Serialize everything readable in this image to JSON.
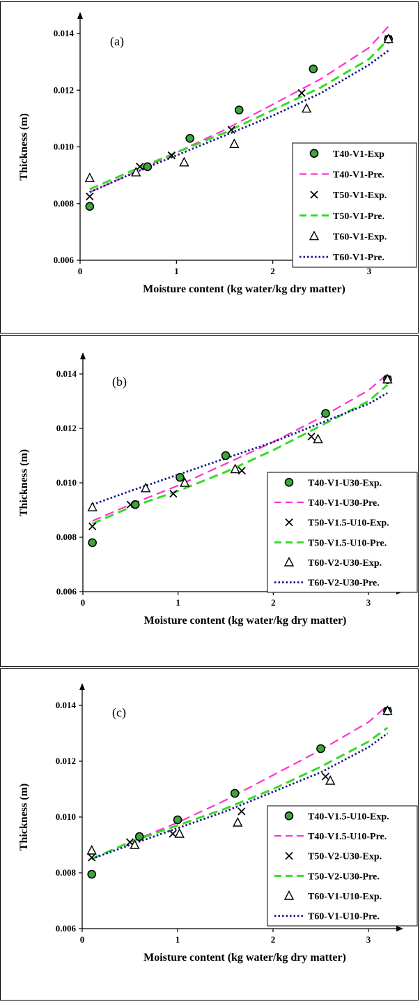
{
  "chart_data": [
    {
      "type": "scatter",
      "panel_label": "(a)",
      "xlabel": "Moisture content (kg water/kg dry matter)",
      "ylabel": "Thickness (m)",
      "xlim": [
        0,
        3.3
      ],
      "ylim": [
        0.006,
        0.015
      ],
      "xticks": [
        "0",
        "1",
        "2",
        "3"
      ],
      "yticks": [
        "0.006",
        "0.008",
        "0.010",
        "0.012",
        "0.014"
      ],
      "grid": false,
      "legend_position": "bottom-right",
      "series": [
        {
          "name": "T40-V1-Exp",
          "kind": "points",
          "marker": "dot",
          "color": "#2ca02c",
          "x": [
            0.1,
            0.7,
            1.14,
            1.65,
            2.42,
            3.2
          ],
          "y": [
            0.0079,
            0.0093,
            0.0103,
            0.0113,
            0.01275,
            0.0138
          ]
        },
        {
          "name": "T40-V1-Pre.",
          "kind": "line",
          "dash": "pink-dash",
          "color": "#ff33cc",
          "x": [
            0.1,
            0.5,
            1.0,
            1.5,
            2.0,
            2.5,
            3.0,
            3.2
          ],
          "y": [
            0.0084,
            0.009,
            0.0098,
            0.0106,
            0.0115,
            0.0124,
            0.0135,
            0.01425
          ]
        },
        {
          "name": "T50-V1-Exp.",
          "kind": "points",
          "marker": "cross",
          "color": "#000000",
          "x": [
            0.1,
            0.62,
            0.95,
            1.57,
            2.3,
            3.2
          ],
          "y": [
            0.00825,
            0.0093,
            0.0097,
            0.0106,
            0.0119,
            0.0138
          ]
        },
        {
          "name": "T50-V1-Pre.",
          "kind": "line",
          "dash": "green-dash",
          "color": "#33dd22",
          "x": [
            0.1,
            0.5,
            1.0,
            1.5,
            2.0,
            2.5,
            3.0,
            3.2
          ],
          "y": [
            0.0085,
            0.0091,
            0.0098,
            0.0105,
            0.0113,
            0.0121,
            0.0131,
            0.0138
          ]
        },
        {
          "name": "T60-V1-Exp.",
          "kind": "points",
          "marker": "triangle",
          "color": "#000000",
          "x": [
            0.1,
            0.58,
            1.08,
            1.6,
            2.35,
            3.2
          ],
          "y": [
            0.0089,
            0.0091,
            0.00945,
            0.0101,
            0.01135,
            0.0138
          ]
        },
        {
          "name": "T60-V1-Pre.",
          "kind": "line",
          "dash": "blue-dot",
          "color": "#1a1a8c",
          "x": [
            0.1,
            0.5,
            1.0,
            1.5,
            2.0,
            2.5,
            3.0,
            3.2
          ],
          "y": [
            0.0084,
            0.009,
            0.0097,
            0.0104,
            0.0111,
            0.0119,
            0.0129,
            0.0134
          ]
        }
      ]
    },
    {
      "type": "scatter",
      "panel_label": "(b)",
      "xlabel": "Moisture content (kg water/kg dry matter)",
      "ylabel": "Thickness (m)",
      "xlim": [
        0,
        3.3
      ],
      "ylim": [
        0.006,
        0.015
      ],
      "xticks": [
        "0",
        "1",
        "2",
        "3"
      ],
      "yticks": [
        "0.006",
        "0.008",
        "0.010",
        "0.012",
        "0.014"
      ],
      "grid": false,
      "legend_position": "bottom-right",
      "series": [
        {
          "name": "T40-V1-U30-Exp.",
          "kind": "points",
          "marker": "dot",
          "color": "#2ca02c",
          "x": [
            0.1,
            0.55,
            1.02,
            1.5,
            2.55,
            3.2
          ],
          "y": [
            0.0078,
            0.0092,
            0.0102,
            0.011,
            0.01255,
            0.0138
          ]
        },
        {
          "name": "T40-V1-U30-Pre.",
          "kind": "line",
          "dash": "pink-dash",
          "color": "#ff33cc",
          "x": [
            0.1,
            0.5,
            1.0,
            1.5,
            2.0,
            2.5,
            3.0,
            3.2
          ],
          "y": [
            0.0086,
            0.0092,
            0.0099,
            0.0107,
            0.0115,
            0.0124,
            0.0134,
            0.014
          ]
        },
        {
          "name": "T50-V1.5-U10-Exp.",
          "kind": "points",
          "marker": "cross",
          "color": "#000000",
          "x": [
            0.1,
            0.5,
            0.95,
            1.67,
            2.4,
            3.2
          ],
          "y": [
            0.0084,
            0.0092,
            0.0096,
            0.01045,
            0.0117,
            0.0138
          ]
        },
        {
          "name": "T50-V1.5-U10-Pre.",
          "kind": "line",
          "dash": "green-dash",
          "color": "#33dd22",
          "x": [
            0.1,
            0.5,
            1.0,
            1.5,
            2.0,
            2.5,
            3.0,
            3.2
          ],
          "y": [
            0.0085,
            0.0091,
            0.0097,
            0.0104,
            0.0112,
            0.0121,
            0.013,
            0.0136
          ]
        },
        {
          "name": "T60-V2-U30-Exp.",
          "kind": "points",
          "marker": "triangle",
          "color": "#000000",
          "x": [
            0.1,
            0.66,
            1.07,
            1.6,
            2.47,
            3.2
          ],
          "y": [
            0.0091,
            0.0098,
            0.01,
            0.0105,
            0.0116,
            0.0138
          ]
        },
        {
          "name": "T60-V2-U30-Pre.",
          "kind": "line",
          "dash": "blue-dot",
          "color": "#1a1a8c",
          "x": [
            0.1,
            0.5,
            1.0,
            1.5,
            2.0,
            2.5,
            3.0,
            3.2
          ],
          "y": [
            0.0092,
            0.0097,
            0.0103,
            0.0109,
            0.0115,
            0.0122,
            0.0129,
            0.0133
          ]
        }
      ]
    },
    {
      "type": "scatter",
      "panel_label": "(c)",
      "xlabel": "Moisture content (kg water/kg dry matter)",
      "ylabel": "Thickness (m)",
      "xlim": [
        0,
        3.3
      ],
      "ylim": [
        0.006,
        0.015
      ],
      "xticks": [
        "0",
        "1",
        "2",
        "3"
      ],
      "yticks": [
        "0.006",
        "0.008",
        "0.010",
        "0.012",
        "0.014"
      ],
      "grid": false,
      "legend_position": "bottom-right",
      "series": [
        {
          "name": "T40-V1.5-U10-Exp.",
          "kind": "points",
          "marker": "dot",
          "color": "#2ca02c",
          "x": [
            0.1,
            0.6,
            1.0,
            1.6,
            2.5,
            3.2
          ],
          "y": [
            0.00795,
            0.0093,
            0.0099,
            0.01085,
            0.01245,
            0.0138
          ]
        },
        {
          "name": "T40-V1.5-U10-Pre.",
          "kind": "line",
          "dash": "pink-dash",
          "color": "#ff33cc",
          "x": [
            0.1,
            0.5,
            1.0,
            1.5,
            2.0,
            2.5,
            3.0,
            3.2
          ],
          "y": [
            0.0085,
            0.0091,
            0.0098,
            0.0106,
            0.0115,
            0.0124,
            0.0134,
            0.014
          ]
        },
        {
          "name": "T50-V2-U30-Exp.",
          "kind": "points",
          "marker": "cross",
          "color": "#000000",
          "x": [
            0.1,
            0.5,
            0.95,
            1.67,
            2.55,
            3.2
          ],
          "y": [
            0.00855,
            0.0091,
            0.0094,
            0.0102,
            0.01145,
            0.0138
          ]
        },
        {
          "name": "T50-V2-U30-Pre.",
          "kind": "line",
          "dash": "green-dash",
          "color": "#33dd22",
          "x": [
            0.1,
            0.5,
            1.0,
            1.5,
            2.0,
            2.5,
            3.0,
            3.2
          ],
          "y": [
            0.0085,
            0.0091,
            0.0097,
            0.0103,
            0.011,
            0.0118,
            0.0127,
            0.0132
          ]
        },
        {
          "name": "T60-V1-U10-Exp.",
          "kind": "points",
          "marker": "triangle",
          "color": "#000000",
          "x": [
            0.1,
            0.55,
            1.02,
            1.63,
            2.6,
            3.2
          ],
          "y": [
            0.0088,
            0.009,
            0.0094,
            0.0098,
            0.0113,
            0.0138
          ]
        },
        {
          "name": "T60-V1-U10-Pre.",
          "kind": "line",
          "dash": "blue-dot",
          "color": "#1a1a8c",
          "x": [
            0.1,
            0.5,
            1.0,
            1.5,
            2.0,
            2.5,
            3.0,
            3.2
          ],
          "y": [
            0.0085,
            0.009,
            0.0096,
            0.0102,
            0.0109,
            0.0116,
            0.0125,
            0.013
          ]
        }
      ]
    }
  ]
}
